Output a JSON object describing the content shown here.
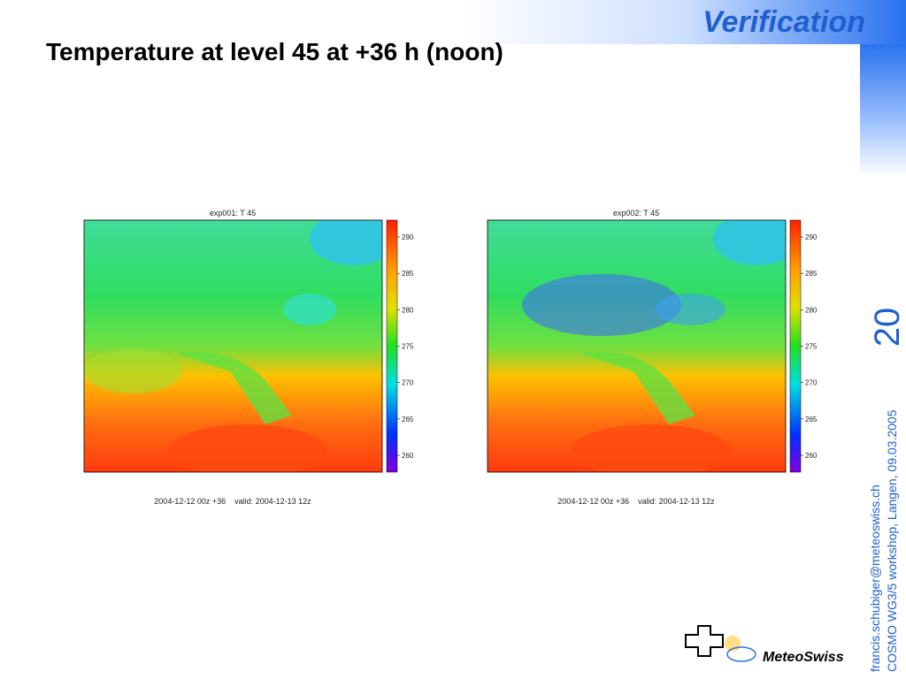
{
  "header": {
    "section": "Verification",
    "title": "Temperature at level 45 at +36 h (noon)"
  },
  "panels": [
    {
      "title": "exp001: T 45",
      "colorbar_ticks": [
        290,
        285,
        280,
        275,
        270,
        265,
        260
      ],
      "caption": "2004-12-12 00z +36    valid: 2004-12-13 12z"
    },
    {
      "title": "exp002: T 45",
      "colorbar_ticks": [
        290,
        285,
        280,
        275,
        270,
        265,
        260
      ],
      "caption": "2004-12-12 00z +36    valid: 2004-12-13 12z"
    }
  ],
  "slide_number": "20",
  "footer": {
    "lines": [
      "francis.schubiger@meteoswiss.ch",
      "COSMO WG3/5 workshop, Langen, 09.03.2005"
    ]
  },
  "logo": {
    "text": "MeteoSwiss"
  }
}
